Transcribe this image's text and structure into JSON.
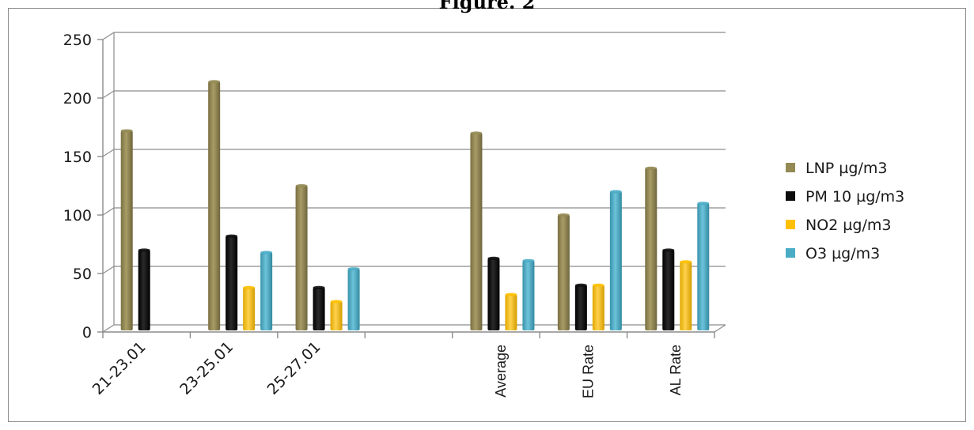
{
  "figure_caption": "Figure. 2",
  "chart_data": {
    "type": "bar",
    "title": "",
    "xlabel": "",
    "ylabel": "",
    "ylim": [
      0,
      250
    ],
    "yticks": [
      0,
      50,
      100,
      150,
      200,
      250
    ],
    "grid": true,
    "legend_position": "right",
    "categories": [
      "21-23.01",
      "23-25.01",
      "25-27.01",
      "",
      "Average",
      "EU Rate",
      "AL Rate"
    ],
    "series": [
      {
        "name": "LNP µg/m3",
        "color": "#948a54",
        "values": [
          172,
          214,
          125,
          null,
          170,
          100,
          140
        ]
      },
      {
        "name": "PM 10 µg/m3",
        "color": "#0d0d0d",
        "values": [
          70,
          82,
          38,
          null,
          63,
          40,
          70
        ]
      },
      {
        "name": "NO2 µg/m3",
        "color": "#ffc000",
        "values": [
          null,
          38,
          26,
          null,
          32,
          40,
          60
        ]
      },
      {
        "name": "O3 µg/m3",
        "color": "#4bacc6",
        "values": [
          null,
          68,
          54,
          null,
          61,
          120,
          110
        ]
      }
    ]
  }
}
